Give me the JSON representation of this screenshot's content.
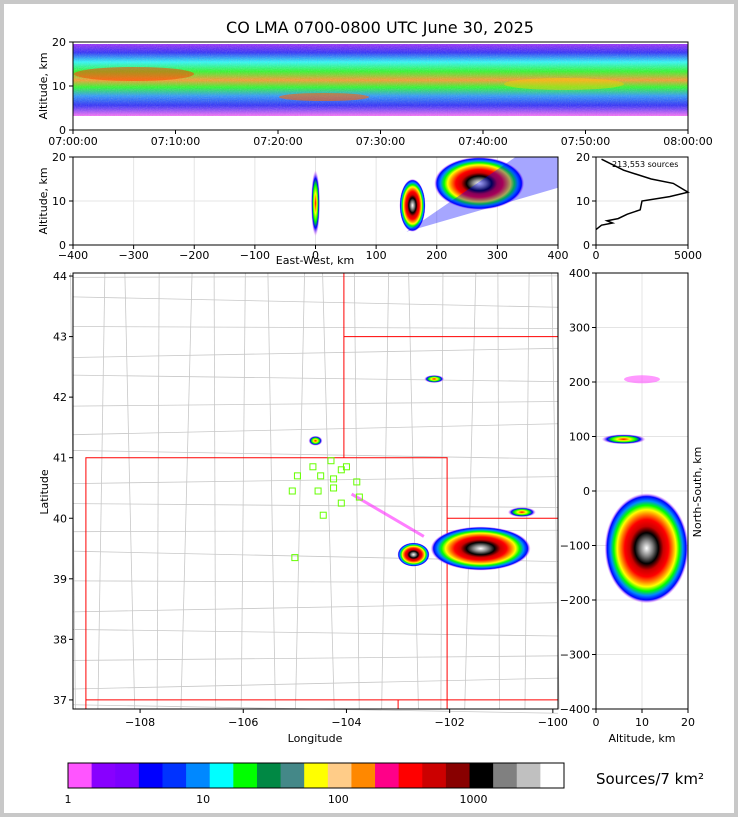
{
  "chart_data": [
    {
      "type": "heatmap",
      "panel": "altitude-vs-time",
      "title": "CO LMA 0700-0800 UTC June 30, 2025",
      "ylabel": "Altitude, km",
      "xlabel": "",
      "x_ticks": [
        "07:00:00",
        "07:10:00",
        "07:20:00",
        "07:30:00",
        "07:40:00",
        "07:50:00",
        "08:00:00"
      ],
      "y_ticks": [
        0,
        10,
        20
      ],
      "xlim": [
        "07:00:00",
        "08:00:00"
      ],
      "ylim": [
        0,
        20
      ],
      "description_band": {
        "altitude_min_km": 3,
        "altitude_max_km": 20,
        "peak_altitude_km": 12
      }
    },
    {
      "type": "heatmap",
      "panel": "altitude-vs-east-west",
      "xlabel": "East-West, km",
      "ylabel": "Altitude, km",
      "x_ticks": [
        -400,
        -300,
        -200,
        -100,
        0,
        100,
        200,
        300,
        400
      ],
      "y_ticks": [
        0,
        10,
        20
      ],
      "xlim": [
        -400,
        400
      ],
      "ylim": [
        0,
        20
      ],
      "clusters_km": [
        {
          "x": 0,
          "z_min": 2,
          "z_max": 17
        },
        {
          "x": 160,
          "z_min": 3,
          "z_max": 15
        },
        {
          "x": 270,
          "z_min": 8,
          "z_max": 20
        }
      ]
    },
    {
      "type": "line",
      "panel": "source-altitude-histogram",
      "annotation": "213,553 sources",
      "x_ticks": [
        0,
        5000
      ],
      "y_ticks": [
        0,
        10,
        20
      ],
      "xlim": [
        0,
        5000
      ],
      "ylim": [
        0,
        20
      ],
      "x": [
        0,
        300,
        900,
        600,
        1200,
        1700,
        2400,
        2500,
        4000,
        5000,
        4200,
        3000,
        1500,
        300
      ],
      "y": [
        3.5,
        4.5,
        5,
        5.5,
        6,
        7,
        8,
        10,
        11,
        12,
        14,
        15,
        17,
        19.5
      ]
    },
    {
      "type": "heatmap",
      "panel": "plan-view-map",
      "xlabel": "Longitude",
      "ylabel": "Latitude",
      "x_ticks": [
        -108,
        -106,
        -104,
        -102,
        -100
      ],
      "y_ticks": [
        37,
        38,
        39,
        40,
        41,
        42,
        43,
        44
      ],
      "xlim": [
        -109.3,
        -99.9
      ],
      "ylim": [
        36.85,
        44.05
      ],
      "stations_lon_lat": [
        [
          -104.3,
          40.95
        ],
        [
          -104.65,
          40.85
        ],
        [
          -104.0,
          40.85
        ],
        [
          -104.1,
          40.8
        ],
        [
          -104.95,
          40.7
        ],
        [
          -104.5,
          40.7
        ],
        [
          -104.25,
          40.65
        ],
        [
          -103.8,
          40.6
        ],
        [
          -105.05,
          40.45
        ],
        [
          -104.55,
          40.45
        ],
        [
          -104.25,
          40.5
        ],
        [
          -103.75,
          40.35
        ],
        [
          -104.1,
          40.25
        ],
        [
          -104.45,
          40.05
        ],
        [
          -105.0,
          39.35
        ]
      ],
      "clusters_lon_lat": [
        {
          "lon": -101.4,
          "lat": 39.5
        },
        {
          "lon": -102.7,
          "lat": 39.4
        },
        {
          "lon": -104.6,
          "lat": 41.28
        },
        {
          "lon": -102.3,
          "lat": 42.3
        },
        {
          "lon": -100.6,
          "lat": 40.1
        }
      ]
    },
    {
      "type": "heatmap",
      "panel": "north-south-vs-altitude",
      "xlabel": "Altitude, km",
      "ylabel": "North-South, km",
      "x_ticks": [
        0,
        10,
        20
      ],
      "y_ticks": [
        -400,
        -300,
        -200,
        -100,
        0,
        100,
        200,
        300,
        400
      ],
      "xlim": [
        0,
        20
      ],
      "ylim": [
        -400,
        400
      ]
    }
  ],
  "colorbar": {
    "label": "Sources/7 km²",
    "ticks": [
      "1",
      "10",
      "100",
      "1000"
    ],
    "colors": [
      "#ff55ff",
      "#8800ff",
      "#7b00ff",
      "#0000ff",
      "#0033ff",
      "#0088ff",
      "#00ffff",
      "#00ff00",
      "#008844",
      "#448888",
      "#ffff00",
      "#ffcc88",
      "#ff8800",
      "#ff0088",
      "#ff0000",
      "#cc0000",
      "#880000",
      "#000000",
      "#808080",
      "#c0c0c0",
      "#ffffff"
    ]
  }
}
